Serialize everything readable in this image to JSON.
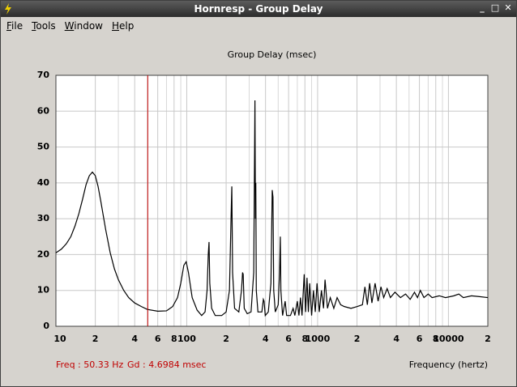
{
  "window": {
    "title": "Hornresp - Group Delay",
    "menu": [
      "File",
      "Tools",
      "Window",
      "Help"
    ]
  },
  "chart_data": {
    "type": "line",
    "title": "Group Delay (msec)",
    "x_label": "Frequency (hertz)",
    "annotations": [
      "Freq : 50.33 Hz",
      "Gd : 4.6984 msec"
    ],
    "cursor_x": 50.33,
    "cursor_color": "#c00000",
    "x_log": true,
    "grid": true,
    "color": "#000000",
    "xlim": [
      10,
      20000
    ],
    "ylim": [
      0,
      70
    ],
    "yticks": [
      0,
      10,
      20,
      30,
      40,
      50,
      60,
      70
    ],
    "xticks": [
      10,
      {
        "value": 20,
        "label": "2"
      },
      {
        "value": 40,
        "label": "4"
      },
      {
        "value": 60,
        "label": "6"
      },
      {
        "value": 80,
        "label": "8"
      },
      100,
      {
        "value": 200,
        "label": "2"
      },
      {
        "value": 400,
        "label": "4"
      },
      {
        "value": 600,
        "label": "6"
      },
      {
        "value": 800,
        "label": "8"
      },
      1000,
      {
        "value": 2000,
        "label": "2"
      },
      {
        "value": 4000,
        "label": "4"
      },
      {
        "value": 6000,
        "label": "6"
      },
      {
        "value": 8000,
        "label": "8"
      },
      10000,
      {
        "value": 20000,
        "label": "2"
      }
    ],
    "xgrid_minor": [
      30,
      50,
      70,
      90,
      300,
      500,
      700,
      900,
      3000,
      5000,
      7000,
      9000
    ],
    "x": [
      10,
      11,
      12,
      13,
      14,
      15,
      16,
      17,
      18,
      19,
      20,
      21,
      22,
      24,
      26,
      28,
      30,
      33,
      36,
      40,
      45,
      50,
      60,
      70,
      78,
      85,
      90,
      95,
      99,
      103,
      110,
      120,
      130,
      138,
      143,
      146,
      148,
      150,
      155,
      165,
      185,
      200,
      212,
      218,
      221,
      224,
      232,
      250,
      262,
      267,
      270,
      275,
      290,
      310,
      325,
      332,
      335,
      337,
      340,
      350,
      375,
      385,
      390,
      398,
      420,
      440,
      450,
      456,
      462,
      475,
      500,
      512,
      519,
      524,
      540,
      565,
      580,
      620,
      650,
      670,
      700,
      720,
      740,
      760,
      790,
      810,
      830,
      850,
      870,
      900,
      930,
      960,
      990,
      1030,
      1070,
      1110,
      1140,
      1190,
      1250,
      1330,
      1410,
      1500,
      1600,
      1800,
      2000,
      2200,
      2300,
      2400,
      2500,
      2600,
      2750,
      2900,
      3050,
      3200,
      3400,
      3600,
      3900,
      4300,
      4700,
      5100,
      5500,
      5800,
      6100,
      6500,
      7000,
      7500,
      8500,
      9500,
      11000,
      12000,
      13000,
      15000,
      17000,
      20000
    ],
    "values": [
      20.5,
      21.5,
      23,
      25,
      28,
      31.5,
      35.5,
      39.5,
      42,
      43,
      42,
      39,
      35,
      27,
      20.5,
      16,
      13,
      10,
      8,
      6.5,
      5.5,
      4.7,
      4.2,
      4.3,
      5.5,
      8,
      12,
      17,
      18,
      15,
      8,
      4.5,
      3,
      4,
      10,
      20,
      23.5,
      12,
      5,
      3,
      3,
      4,
      10,
      30,
      39,
      15,
      5,
      4,
      10,
      15,
      14.5,
      5,
      3.5,
      4,
      15,
      63,
      30,
      40,
      10,
      4,
      4,
      7.5,
      7,
      3,
      4,
      12,
      38,
      36,
      10,
      4,
      6,
      15,
      25,
      10,
      3,
      7,
      3,
      3,
      5,
      3,
      7,
      3,
      8,
      3,
      14.5,
      4,
      13.5,
      4,
      12,
      3,
      10,
      4,
      12,
      4,
      10,
      5,
      13,
      5,
      8,
      5,
      8,
      6,
      5.5,
      5,
      5.5,
      6,
      11,
      6,
      12,
      6.5,
      12,
      7,
      11,
      8,
      10.5,
      8,
      9.5,
      8,
      9,
      7.5,
      9.5,
      8,
      10,
      8,
      9,
      8,
      8.5,
      8,
      8.5,
      9,
      8,
      8.5,
      8.3,
      8
    ]
  }
}
